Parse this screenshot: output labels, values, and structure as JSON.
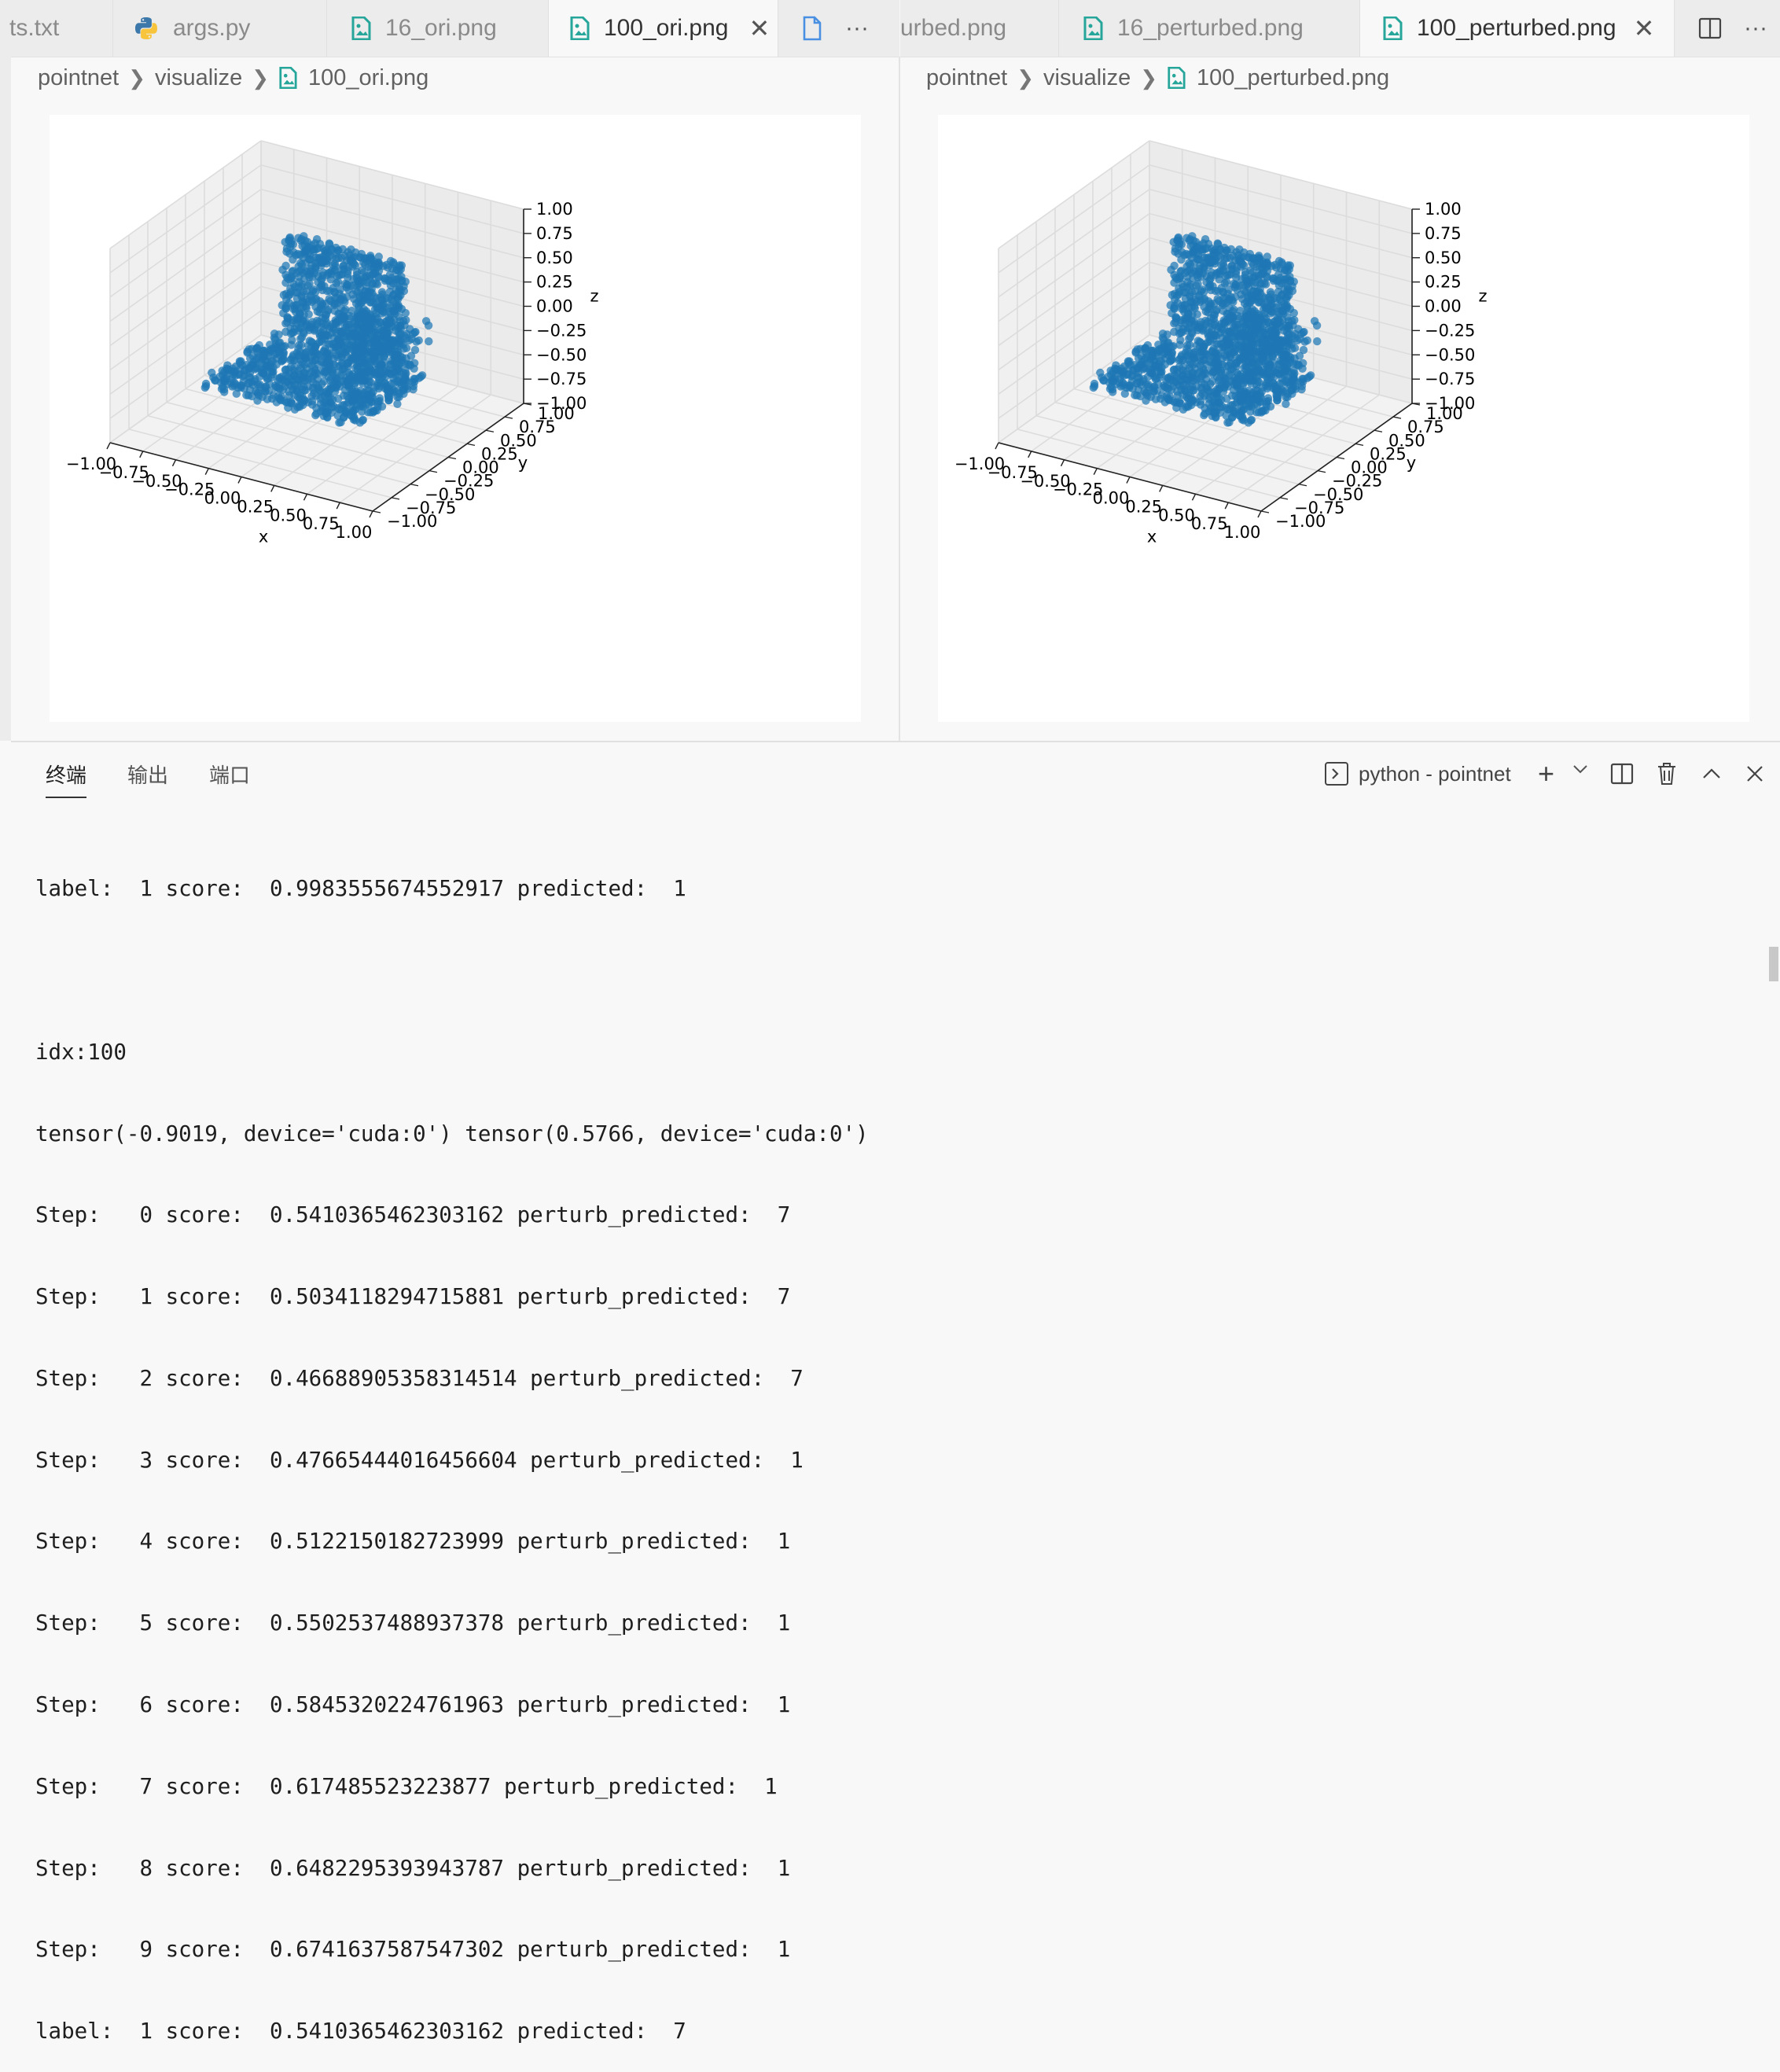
{
  "left_group": {
    "tabs": [
      {
        "label": "ts.txt",
        "icon": "text-file-icon",
        "active": false
      },
      {
        "label": "args.py",
        "icon": "python-icon",
        "active": false
      },
      {
        "label": "16_ori.png",
        "icon": "image-file-icon",
        "active": false
      },
      {
        "label": "100_ori.png",
        "icon": "image-file-icon",
        "active": true
      },
      {
        "label": "",
        "icon": "file-icon",
        "active": false
      }
    ],
    "more_label": "···",
    "breadcrumb": [
      "pointnet",
      "visualize",
      "100_ori.png"
    ]
  },
  "right_group": {
    "tabs": [
      {
        "label": "urbed.png",
        "icon": "",
        "active": false
      },
      {
        "label": "16_perturbed.png",
        "icon": "image-file-icon",
        "active": false
      },
      {
        "label": "100_perturbed.png",
        "icon": "image-file-icon",
        "active": true
      }
    ],
    "more_label": "···",
    "breadcrumb": [
      "pointnet",
      "visualize",
      "100_perturbed.png"
    ]
  },
  "plot": {
    "x_ticks": [
      "−1.00",
      "−0.75",
      "−0.50",
      "−0.25",
      "0.00",
      "0.25",
      "0.50",
      "0.75",
      "1.00"
    ],
    "y_ticks": [
      "−1.00",
      "−0.75",
      "−0.50",
      "−0.25",
      "0.00",
      "0.25",
      "0.50",
      "0.75",
      "1.00"
    ],
    "z_ticks": [
      "1.00",
      "0.75",
      "0.50",
      "0.25",
      "0.00",
      "−0.25",
      "−0.50",
      "−0.75",
      "−1.00"
    ],
    "x_label": "x",
    "y_label": "y",
    "z_label": "z",
    "point_color": "#1f77b4"
  },
  "panel": {
    "tabs": [
      "终端",
      "输出",
      "端口"
    ],
    "terminal_name": "python - pointnet",
    "add_label": "+",
    "chevron": "⌄"
  },
  "terminal_lines": [
    "label:  1 score:  0.9983555674552917 predicted:  1",
    "",
    "idx:100",
    "tensor(-0.9019, device='cuda:0') tensor(0.5766, device='cuda:0')",
    "Step:   0 score:  0.5410365462303162 perturb_predicted:  7",
    "Step:   1 score:  0.5034118294715881 perturb_predicted:  7",
    "Step:   2 score:  0.46688905358314514 perturb_predicted:  7",
    "Step:   3 score:  0.47665444016456604 perturb_predicted:  1",
    "Step:   4 score:  0.5122150182723999 perturb_predicted:  1",
    "Step:   5 score:  0.5502537488937378 perturb_predicted:  1",
    "Step:   6 score:  0.5845320224761963 perturb_predicted:  1",
    "Step:   7 score:  0.617485523223877 perturb_predicted:  1",
    "Step:   8 score:  0.6482295393943787 perturb_predicted:  1",
    "Step:   9 score:  0.6741637587547302 perturb_predicted:  1",
    "label:  1 score:  0.5410365462303162 predicted:  7"
  ]
}
